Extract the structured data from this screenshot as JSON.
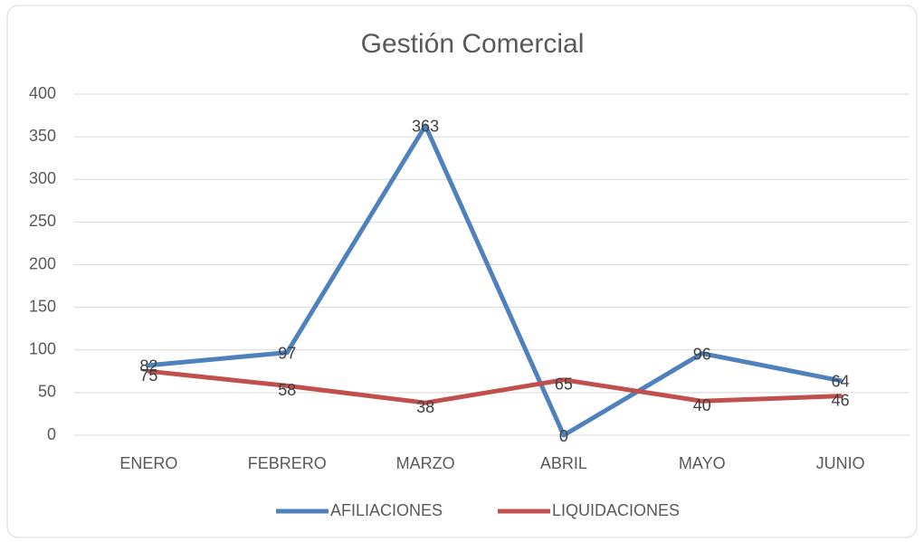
{
  "chart_data": {
    "type": "line",
    "title": "Gestión Comercial",
    "categories": [
      "ENERO",
      "FEBRERO",
      "MARZO",
      "ABRIL",
      "MAYO",
      "JUNIO"
    ],
    "series": [
      {
        "name": "AFILIACIONES",
        "color": "#4f81bd",
        "values": [
          82,
          97,
          363,
          0,
          96,
          64
        ]
      },
      {
        "name": "LIQUIDACIONES",
        "color": "#c0504d",
        "values": [
          75,
          58,
          38,
          65,
          40,
          46
        ]
      }
    ],
    "ylim": [
      0,
      400
    ],
    "yticks": [
      0,
      50,
      100,
      150,
      200,
      250,
      300,
      350,
      400
    ],
    "grid": true,
    "legend": "bottom",
    "data_labels": true
  }
}
